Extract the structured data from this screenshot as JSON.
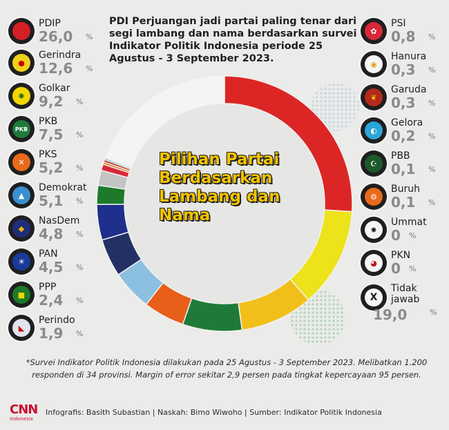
{
  "title": "PDI Perjuangan jadi partai paling tenar dari segi lambang dan nama berdasarkan survei Indikator Politik Indonesia periode 25 Agustus - 3 September 2023.",
  "center_label": "Pilihan Partai Berdasarkan Lambang dan Nama",
  "percent_sign": "%",
  "chart_data": {
    "type": "pie",
    "title": "PDI Perjuangan jadi partai paling tenar dari segi lambang dan nama berdasarkan survei Indikator Politik Indonesia periode 25 Agustus - 3 September 2023.",
    "categories": [
      "PDIP",
      "Gerindra",
      "Golkar",
      "PKB",
      "PKS",
      "Demokrat",
      "NasDem",
      "PAN",
      "PPP",
      "Perindo",
      "PSI",
      "Hanura",
      "Garuda",
      "Gelora",
      "PBB",
      "Buruh",
      "Ummat",
      "PKN",
      "Tidak jawab"
    ],
    "labels": [
      "26,0",
      "12,6",
      "9,2",
      "7,5",
      "5,2",
      "5,1",
      "4,8",
      "4,5",
      "2,4",
      "1,9",
      "0,8",
      "0,3",
      "0,3",
      "0,2",
      "0,1",
      "0,1",
      "0",
      "0",
      "19,0"
    ],
    "values": [
      26.0,
      12.6,
      9.2,
      7.5,
      5.2,
      5.1,
      4.8,
      4.5,
      2.4,
      1.9,
      0.8,
      0.3,
      0.3,
      0.2,
      0.1,
      0.1,
      0,
      0,
      19.0
    ],
    "unit": "%",
    "colors": [
      "#dc2626",
      "#ece31a",
      "#f2bf1a",
      "#1f7a3a",
      "#e85f1a",
      "#8cc0e0",
      "#233064",
      "#1e2f8c",
      "#1d7a2a",
      "#c4c4c4",
      "#d8283a",
      "#e67a1a",
      "#b52a1a",
      "#2aa6d9",
      "#1d5a2a",
      "#e86a1a",
      "#222222",
      "#b81a22",
      "#f4f4f4"
    ]
  },
  "left_parties": [
    {
      "name": "PDIP",
      "value": "26,0",
      "color": "#d41f26"
    },
    {
      "name": "Gerindra",
      "value": "12,6",
      "color": "#f0d21a"
    },
    {
      "name": "Golkar",
      "value": "9,2",
      "color": "#f2d600"
    },
    {
      "name": "PKB",
      "value": "7,5",
      "color": "#1f7a3a"
    },
    {
      "name": "PKS",
      "value": "5,2",
      "color": "#e86a1a"
    },
    {
      "name": "Demokrat",
      "value": "5,1",
      "color": "#3a8fd0"
    },
    {
      "name": "NasDem",
      "value": "4,8",
      "color": "#1e2f7a"
    },
    {
      "name": "PAN",
      "value": "4,5",
      "color": "#1a3a9a"
    },
    {
      "name": "PPP",
      "value": "2,4",
      "color": "#1d7a2a"
    },
    {
      "name": "Perindo",
      "value": "1,9",
      "color": "#e0e4ee"
    }
  ],
  "right_parties": [
    {
      "name": "PSI",
      "value": "0,8",
      "color": "#d8283a"
    },
    {
      "name": "Hanura",
      "value": "0,3",
      "color": "#e6a01a"
    },
    {
      "name": "Garuda",
      "value": "0,3",
      "color": "#b52a1a"
    },
    {
      "name": "Gelora",
      "value": "0,2",
      "color": "#2aa6d9"
    },
    {
      "name": "PBB",
      "value": "0,1",
      "color": "#1d5a2a"
    },
    {
      "name": "Buruh",
      "value": "0,1",
      "color": "#e86a1a"
    },
    {
      "name": "Ummat",
      "value": "0",
      "color": "#222222"
    },
    {
      "name": "PKN",
      "value": "0",
      "color": "#b81a22"
    },
    {
      "name": "Tidak jawab",
      "value": "19,0",
      "color": "#f4f4f4"
    }
  ],
  "tidak_line1": "Tidak",
  "tidak_line2": "jawab",
  "footnote": "*Survei Indikator Politik Indonesia dilakukan pada 25 Agustus - 3 September 2023. Melibatkan 1.200 responden di 34 provinsi. Margin of error sekitar 2,9 persen pada tingkat kepercayaan 95 persen.",
  "brand_mark": "CNN",
  "brand_sub": "Indonesia",
  "credits": "Infografis: Basith Subastian | Naskah: Bimo Wiwoho | Sumber: Indikator Politik Indonesia"
}
